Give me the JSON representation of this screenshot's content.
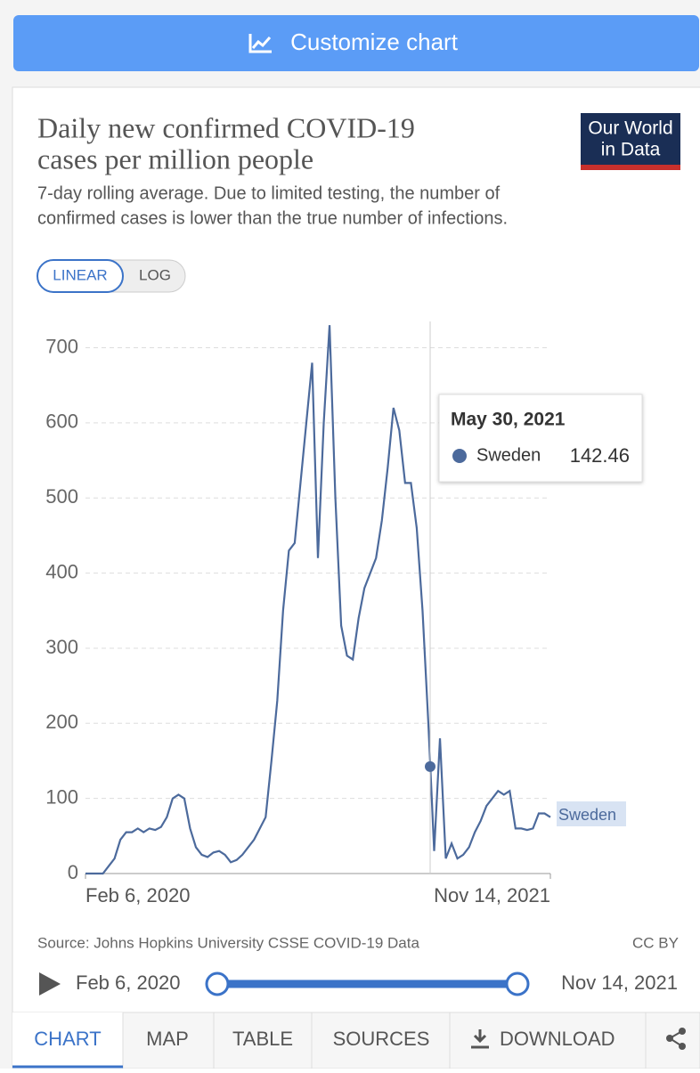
{
  "toolbar": {
    "customize": "Customize chart"
  },
  "logo": {
    "line1": "Our World",
    "line2": "in Data"
  },
  "toggle": {
    "linear": "LINEAR",
    "log": "LOG"
  },
  "chart_data": {
    "type": "line",
    "title": [
      "Daily new confirmed COVID-19",
      "cases per million people"
    ],
    "subtitle": [
      "7-day rolling average. Due to limited testing, the number of",
      "confirmed cases is lower than the true number of infections."
    ],
    "categories": [
      "Feb 6, 2020",
      null,
      null,
      null,
      null,
      null,
      null,
      null,
      null,
      null,
      null,
      null,
      null,
      null,
      null,
      null,
      null,
      null,
      null,
      null,
      null,
      null,
      null,
      null,
      null,
      null,
      null,
      null,
      null,
      null,
      null,
      null,
      null,
      null,
      null,
      null,
      null,
      null,
      null,
      null,
      null,
      null,
      null,
      null,
      null,
      null,
      null,
      null,
      null,
      null,
      null,
      null,
      null,
      null,
      null,
      null,
      null,
      null,
      null,
      null,
      null,
      null,
      null,
      null,
      null,
      null,
      null,
      null,
      null,
      null,
      null,
      null,
      null,
      null,
      null,
      null,
      null,
      null,
      null,
      null,
      "Nov 14, 2021"
    ],
    "series": [
      {
        "name": "Sweden",
        "color": "#4c6a9c",
        "values": [
          0,
          0,
          0,
          0,
          10,
          20,
          45,
          55,
          55,
          60,
          55,
          60,
          58,
          62,
          75,
          100,
          105,
          100,
          60,
          35,
          25,
          22,
          28,
          30,
          25,
          15,
          18,
          25,
          35,
          45,
          60,
          75,
          150,
          230,
          350,
          430,
          440,
          520,
          600,
          680,
          420,
          600,
          730,
          500,
          330,
          290,
          285,
          340,
          380,
          400,
          420,
          470,
          540,
          620,
          590,
          520,
          520,
          460,
          350,
          200,
          30,
          180,
          20,
          40,
          20,
          25,
          35,
          55,
          70,
          90,
          100,
          110,
          105,
          110,
          60,
          60,
          58,
          60,
          80,
          80,
          75
        ]
      }
    ],
    "ylim": [
      0,
      735
    ],
    "yticks": [
      0,
      100,
      200,
      300,
      400,
      500,
      600,
      700
    ],
    "grid": true,
    "tooltip": {
      "date": "May 30, 2021",
      "series": "Sweden",
      "value": 142.46
    },
    "source": "Source: Johns Hopkins University CSSE COVID-19 Data",
    "license": "CC BY"
  },
  "tabs": [
    "CHART",
    "MAP",
    "TABLE",
    "SOURCES",
    "DOWNLOAD"
  ]
}
